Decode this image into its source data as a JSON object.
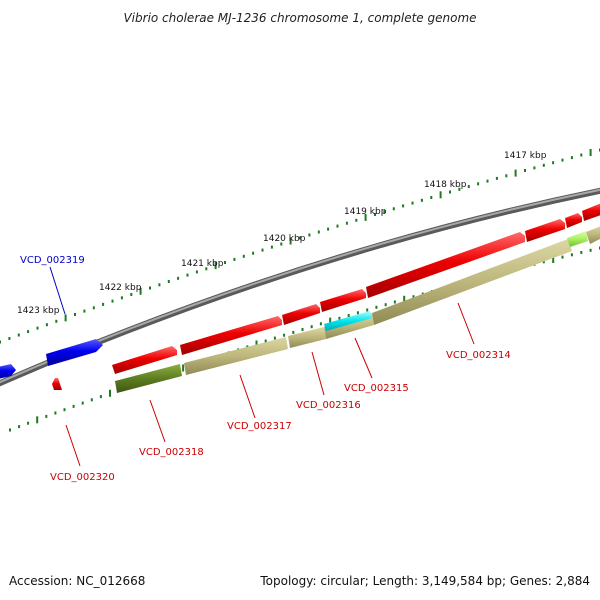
{
  "title": "Vibrio cholerae MJ-1236 chromosome 1, complete genome",
  "ruler": {
    "tick_color": "#1e7a1e",
    "labels": [
      "1417 kbp",
      "1418 kbp",
      "1419 kbp",
      "1420 kbp",
      "1421 kbp",
      "1422 kbp",
      "1423 kbp"
    ]
  },
  "genes": [
    {
      "id": "VCD_002319",
      "label_color": "#0000cc"
    },
    {
      "id": "VCD_002320",
      "label_color": "#cc0000"
    },
    {
      "id": "VCD_002318",
      "label_color": "#cc0000"
    },
    {
      "id": "VCD_002317",
      "label_color": "#cc0000"
    },
    {
      "id": "VCD_002316",
      "label_color": "#cc0000"
    },
    {
      "id": "VCD_002315",
      "label_color": "#cc0000"
    },
    {
      "id": "VCD_002314",
      "label_color": "#cc0000"
    }
  ],
  "colors": {
    "backbone": "#7a7a7a",
    "forward_strand": "#e00000",
    "reverse_strand": "#0000dd",
    "cds_band": "#bdb77c",
    "cds_band_dark": "#5e7d22",
    "highlight_cyan": "#00e5ee",
    "highlight_green": "#a8f060"
  },
  "footer": {
    "accession": "Accession: NC_012668",
    "summary": "Topology: circular; Length: 3,149,584 bp; Genes: 2,884"
  }
}
